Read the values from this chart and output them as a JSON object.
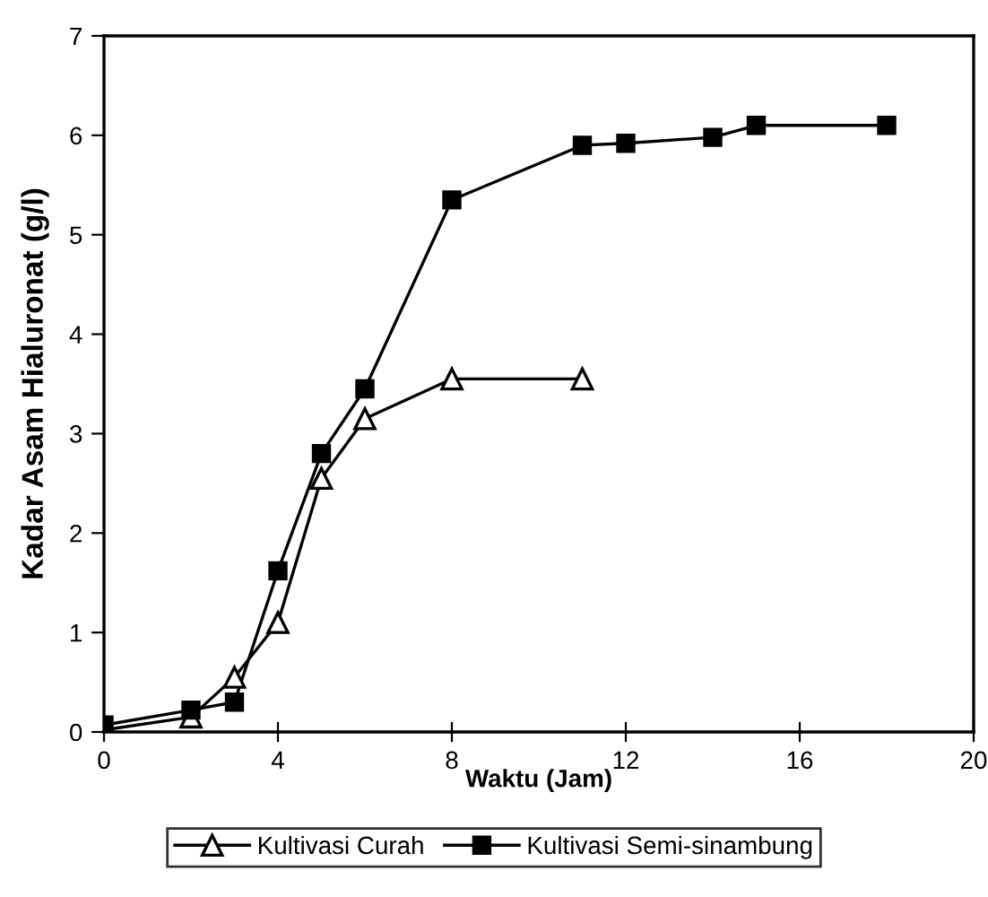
{
  "chart_data": {
    "type": "line",
    "xlabel": "Waktu (Jam)",
    "ylabel": "Kadar Asam Hialuronat (g/l)",
    "xlim": [
      0,
      20
    ],
    "xticks": [
      0,
      4,
      8,
      12,
      16,
      20
    ],
    "ylim": [
      0,
      7
    ],
    "yticks": [
      0,
      1,
      2,
      3,
      4,
      5,
      6,
      7
    ],
    "grid": false,
    "legend": "bottom",
    "line_style": "solid",
    "series": [
      {
        "name": "Kultivasi Curah",
        "color": "#000000",
        "marker": "triangle",
        "x": [
          0,
          2,
          3,
          4,
          5,
          6,
          8,
          11
        ],
        "values": [
          0.02,
          0.15,
          0.55,
          1.1,
          2.55,
          3.15,
          3.55,
          3.55
        ]
      },
      {
        "name": "Kultivasi Semi-sinambung",
        "color": "#000000",
        "marker": "square",
        "x": [
          0,
          2,
          3,
          4,
          5,
          6,
          8,
          11,
          12,
          14,
          15,
          18
        ],
        "values": [
          0.07,
          0.22,
          0.3,
          1.62,
          2.8,
          3.45,
          5.35,
          5.9,
          5.92,
          5.98,
          6.1,
          6.1
        ]
      }
    ]
  }
}
